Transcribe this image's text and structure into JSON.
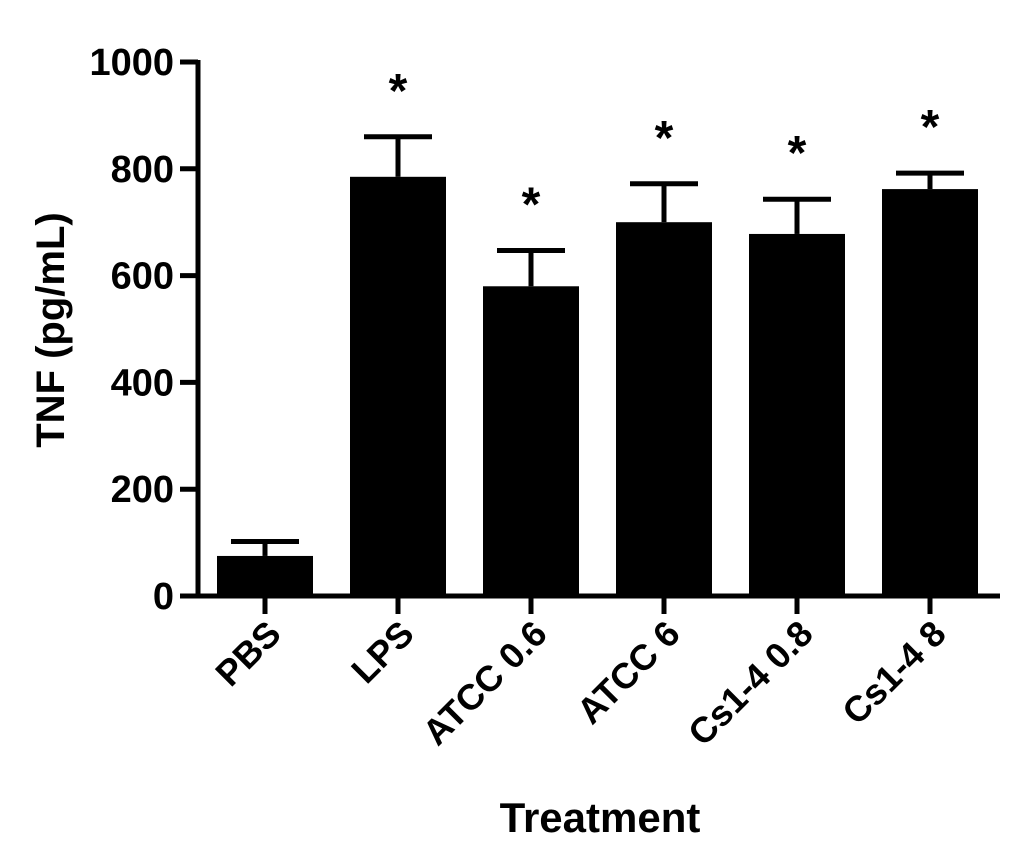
{
  "chart_data": {
    "type": "bar",
    "title": "",
    "xlabel": "Treatment",
    "ylabel": "TNF (pg/mL)",
    "ylim": [
      0,
      1000
    ],
    "yticks": [
      "0",
      "200",
      "400",
      "600",
      "800",
      "1000"
    ],
    "categories": [
      "PBS",
      "LPS",
      "ATCC 0.6",
      "ATCC 6",
      "Cs1-4 0.8",
      "Cs1-4 8"
    ],
    "values": [
      75,
      785,
      580,
      700,
      678,
      762
    ],
    "errors": [
      27,
      75,
      67,
      72,
      65,
      30
    ],
    "annotations": [
      "",
      "*",
      "*",
      "*",
      "*",
      "*"
    ],
    "bar_color": "#000000",
    "grid": false,
    "legend": "none"
  }
}
